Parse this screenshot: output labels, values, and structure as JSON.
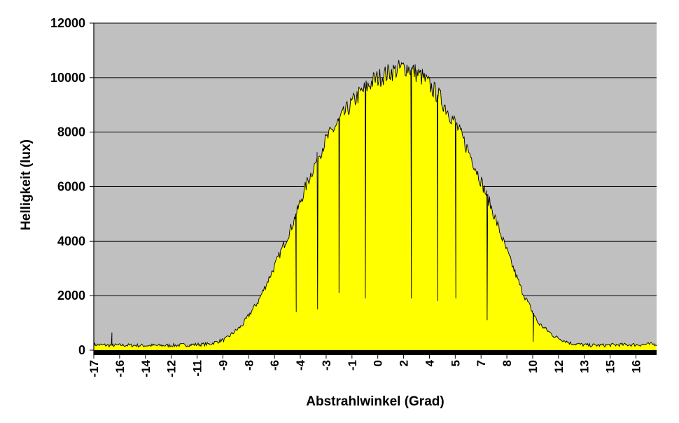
{
  "chart_data": {
    "type": "area",
    "title": "",
    "xlabel": "Abstrahlwinkel (Grad)",
    "ylabel": "Helligkeit (lux)",
    "ylim": [
      0,
      12000
    ],
    "yticks": [
      0,
      2000,
      4000,
      6000,
      8000,
      10000,
      12000
    ],
    "x_tick_labels": [
      "-17",
      "-16",
      "-14",
      "-12",
      "-11",
      "-9",
      "-8",
      "-6",
      "-4",
      "-3",
      "-1",
      "0",
      "2",
      "4",
      "5",
      "7",
      "8",
      "10",
      "12",
      "13",
      "15",
      "16"
    ],
    "grid": "horizontal",
    "legend": "none",
    "colors": {
      "plot_background": "#C0C0C0",
      "fill": "#FFFF00",
      "line": "#000000",
      "baseline": "#000000"
    },
    "x": [
      -17,
      -16,
      -15,
      -14,
      -13,
      -12,
      -11,
      -10,
      -9,
      -8,
      -7,
      -6,
      -5,
      -4,
      -3,
      -2,
      -1,
      0,
      1,
      2,
      3,
      4,
      5,
      6,
      7,
      8,
      9,
      10,
      11,
      12,
      13,
      14,
      15,
      16,
      17
    ],
    "series": [
      {
        "values": [
          200,
          180,
          180,
          170,
          170,
          180,
          200,
          220,
          400,
          900,
          1800,
          3100,
          4500,
          6200,
          7600,
          8500,
          9300,
          9900,
          10200,
          10400,
          10000,
          9300,
          8300,
          7000,
          5500,
          3800,
          2200,
          1000,
          500,
          250,
          180,
          180,
          200,
          200,
          220
        ]
      }
    ],
    "dips": [
      {
        "x": -4.7,
        "value": 1400
      },
      {
        "x": -3.4,
        "value": 1500
      },
      {
        "x": -2.1,
        "value": 2100
      },
      {
        "x": -0.5,
        "value": 1900
      },
      {
        "x": 2.3,
        "value": 1900
      },
      {
        "x": 3.9,
        "value": 1800
      },
      {
        "x": 5.0,
        "value": 1900
      },
      {
        "x": 6.9,
        "value": 1100
      },
      {
        "x": 9.7,
        "value": 300
      },
      {
        "x": -15.9,
        "value": 650
      }
    ]
  }
}
